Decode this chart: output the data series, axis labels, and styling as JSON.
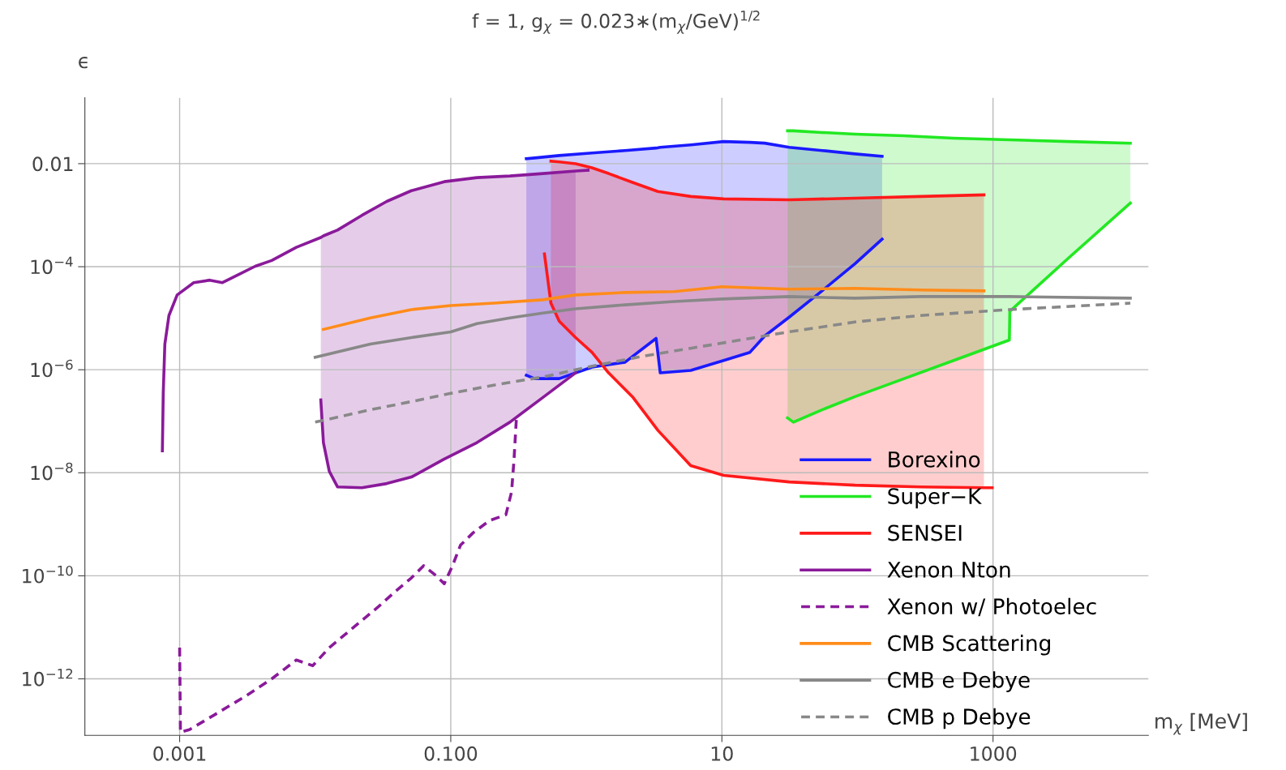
{
  "chart_data": {
    "type": "line",
    "title": "f = 1, g$_{χ}$ = 0.023∗(m$_{χ}$/GeV)$^{1/2}$",
    "xlabel": "m$_{χ}$ [MeV]",
    "ylabel": "ϵ",
    "log": "xy",
    "grid": true,
    "legend": "bottom right",
    "xlim": [
      0.0002,
      14000
    ],
    "ylim": [
      8e-14,
      0.19
    ],
    "xticks": [
      0.001,
      {
        "value": 0.1,
        "label": "0.100"
      },
      10,
      1000
    ],
    "yticks": [
      {
        "value": 1e-12,
        "label": "10$^{−12}$"
      },
      {
        "value": 1e-10,
        "label": "10$^{−10}$"
      },
      {
        "value": 1e-08,
        "label": "10$^{−8}$"
      },
      {
        "value": 1e-06,
        "label": "10$^{−6}$"
      },
      {
        "value": 0.0001,
        "label": "10$^{−4}$"
      },
      0.01
    ],
    "series": [
      {
        "name": "Borexino",
        "color": "#1a1aff",
        "line_style": "solid",
        "x": [
          0.361,
          0.415,
          0.631,
          1.1,
          1.93,
          3.27,
          3.51,
          5.89,
          10.3,
          16.1,
          20.7,
          31.4,
          54.8,
          95.9,
          152
        ],
        "values": [
          0.0125,
          0.0129,
          0.0144,
          0.0161,
          0.018,
          0.0201,
          0.0208,
          0.0232,
          0.0269,
          0.0259,
          0.025,
          0.0208,
          0.018,
          0.0155,
          0.0139
        ],
        "upper": [
          0.0125,
          0.0129,
          0.0144,
          0.0161,
          0.018,
          0.0201,
          0.0208,
          0.0232,
          0.0269,
          0.0259,
          0.025,
          0.0208,
          0.018,
          0.0155,
          0.0139
        ],
        "lower": [
          7.8e-07,
          6.73e-07,
          6.73e-07,
          1.12e-06,
          1.4e-06,
          4.06e-06,
          8.7e-07,
          9.7e-07,
          1.51e-06,
          2.18e-06,
          4.53e-06,
          1.05e-05,
          3.4e-05,
          0.000114,
          0.000343
        ]
      },
      {
        "color": "#1a1aff",
        "line_style": "solid",
        "x": [
          0.361,
          0.415,
          0.631,
          1.1,
          1.93,
          3.27,
          3.51,
          5.89,
          10.3,
          16.1,
          20.7,
          31.4,
          54.8,
          95.9,
          152
        ],
        "values": [
          7.8e-07,
          6.73e-07,
          6.73e-07,
          1.12e-06,
          1.4e-06,
          4.06e-06,
          8.7e-07,
          9.7e-07,
          1.51e-06,
          2.18e-06,
          4.53e-06,
          1.05e-05,
          3.4e-05,
          0.000114,
          0.000343
        ]
      },
      {
        "name": "Super−K",
        "color": "#22e822",
        "line_style": "solid",
        "x": [
          30.5,
          33.7,
          54.8,
          95.9,
          221,
          512,
          1320,
          1330,
          3610,
          10300
        ],
        "values": [
          0.0434,
          0.0434,
          0.0403,
          0.0374,
          0.0348,
          0.0312,
          0.029,
          0.029,
          0.0269,
          0.025
        ],
        "upper": [
          0.0434,
          0.0434,
          0.0403,
          0.0374,
          0.0348,
          0.0312,
          0.029,
          0.029,
          0.0269,
          0.025
        ],
        "lower": [
          1.16e-07,
          9.6e-08,
          1.67e-07,
          3e-07,
          6.73e-07,
          1.51e-06,
          3.77e-06,
          1.36e-05,
          0.000148,
          0.00172
        ]
      },
      {
        "color": "#22e822",
        "line_style": "solid",
        "x": [
          30.5,
          33.7,
          54.8,
          95.9,
          221,
          512,
          1320,
          1330,
          3610,
          10300
        ],
        "values": [
          1.16e-07,
          9.6e-08,
          1.67e-07,
          3e-07,
          6.73e-07,
          1.51e-06,
          3.77e-06,
          1.36e-05,
          0.000148,
          0.00172
        ]
      },
      {
        "name": "SENSEI",
        "color": "#ff1a1a",
        "line_style": "solid",
        "x": [
          0.548,
          0.631,
          0.834,
          1.1,
          1.46,
          2.21,
          3.37,
          5.89,
          10.3,
          31.4,
          95.9,
          293,
          857
        ],
        "values": [
          0.0112,
          0.0108,
          0.01,
          0.00832,
          0.00644,
          0.0043,
          0.00288,
          0.00231,
          0.00207,
          0.00199,
          0.00214,
          0.00231,
          0.00248
        ],
        "upper": [
          0.0112,
          0.0108,
          0.01,
          0.00832,
          0.00644,
          0.0043,
          0.00288,
          0.00231,
          0.00207,
          0.00199,
          0.00214,
          0.00231,
          0.00248
        ],
        "lower": [
          1.96e-05,
          8.77e-06,
          4.21e-06,
          2.18e-06,
          8.7e-07,
          2.9e-07,
          6.68e-08,
          1.38e-08,
          8.89e-09,
          6.63e-09,
          5.73e-09,
          5.32e-09,
          5.13e-09
        ]
      },
      {
        "color": "#ff1a1a",
        "line_style": "solid",
        "x": [
          0.491,
          0.548,
          0.631,
          0.834,
          1.1,
          1.46,
          2.21,
          3.37,
          5.89,
          10.3,
          31.4,
          95.9,
          293,
          857,
          986
        ],
        "values": [
          0.000177,
          1.96e-05,
          8.77e-06,
          4.21e-06,
          2.18e-06,
          8.7e-07,
          2.9e-07,
          6.68e-08,
          1.38e-08,
          8.89e-09,
          6.63e-09,
          5.73e-09,
          5.32e-09,
          5.13e-09,
          5.13e-09
        ]
      },
      {
        "name": "Xenon Nton",
        "color": "#8a1a9a",
        "line_style": "solid",
        "x": [
          0.000746,
          0.000757,
          0.000778,
          0.000834,
          0.000959,
          0.00127,
          0.00167,
          0.00207,
          0.00273,
          0.00361,
          0.00478,
          0.00726,
          0.011,
          0.0115,
          0.0127,
          0.0146,
          0.0221,
          0.0337,
          0.0512,
          0.0895,
          0.156,
          0.273,
          0.478,
          0.834,
          1.03
        ],
        "values": [
          2.67e-08,
          3.48e-07,
          3.14e-06,
          1.13e-05,
          2.83e-05,
          4.91e-05,
          5.48e-05,
          4.91e-05,
          7.08e-05,
          0.000102,
          0.000132,
          0.000238,
          0.000369,
          0.000397,
          0.000443,
          0.000513,
          0.000993,
          0.00185,
          0.00299,
          0.00447,
          0.00536,
          0.00577,
          0.00644,
          0.00719,
          0.00746
        ]
      },
      {
        "color": "#8a1a9a",
        "line_style": "solid",
        "x": [
          0.011,
          0.0115,
          0.0127,
          0.0146,
          0.0221,
          0.0337,
          0.0512,
          0.0895,
          0.156,
          0.273,
          0.478,
          0.834
        ],
        "values": [
          2.59e-07,
          3.85e-08,
          1.07e-08,
          5.32e-09,
          5.13e-09,
          6.17e-09,
          8.26e-09,
          1.85e-08,
          3.85e-08,
          9.6e-08,
          2.9e-07,
          8.7e-07
        ],
        "upper": [
          0.000369,
          0.000397,
          0.000443,
          0.000513,
          0.000993,
          0.00185,
          0.00299,
          0.00447,
          0.00536,
          0.00577,
          0.00644,
          0.00719
        ],
        "lower": [
          2.59e-07,
          3.85e-08,
          1.07e-08,
          5.32e-09,
          5.13e-09,
          6.17e-09,
          8.26e-09,
          1.85e-08,
          3.85e-08,
          9.6e-08,
          2.9e-07,
          8.7e-07
        ]
      },
      {
        "name": "Xenon w/ Photoelec",
        "color": "#8a1a9a",
        "line_style": "dashed",
        "x": [
          0.001,
          0.001014,
          0.00118,
          0.0018,
          0.00314,
          0.00478,
          0.00726,
          0.00959,
          0.0127,
          0.0193,
          0.0293,
          0.0387,
          0.0512,
          0.0631,
          0.0778,
          0.0895,
          0.103,
          0.118,
          0.146,
          0.193,
          0.255,
          0.281,
          0.293,
          0.305
        ],
        "values": [
          4.03e-12,
          9.2e-14,
          1.03e-13,
          1.99e-13,
          4.8e-13,
          1e-12,
          2.32e-12,
          1.8e-12,
          4.03e-12,
          1.01e-11,
          2.52e-11,
          4.88e-11,
          9.1e-11,
          1.57e-10,
          1.01e-10,
          7.03e-11,
          1.57e-10,
          3.94e-10,
          6.83e-10,
          1.18e-09,
          1.53e-09,
          4.28e-09,
          1.85e-08,
          1.16e-07
        ]
      },
      {
        "name": "CMB Scattering",
        "color": "#ff8c1a",
        "line_style": "solid",
        "x": [
          0.0115,
          0.0255,
          0.0512,
          0.1,
          0.207,
          0.478,
          0.834,
          1.93,
          4.45,
          10,
          31.4,
          95.9,
          293,
          857
        ],
        "values": [
          6.07e-06,
          1.01e-05,
          1.47e-05,
          1.76e-05,
          1.96e-05,
          2.28e-05,
          2.83e-05,
          3.16e-05,
          3.28e-05,
          4.08e-05,
          3.66e-05,
          3.8e-05,
          3.53e-05,
          3.4e-05
        ]
      },
      {
        "name": "CMB e Debye",
        "color": "#888888",
        "line_style": "solid",
        "x": [
          0.01,
          0.0255,
          0.0512,
          0.1,
          0.156,
          0.273,
          0.478,
          0.834,
          1.93,
          4.45,
          10,
          31.4,
          95.9,
          293,
          1320,
          10300
        ],
        "values": [
          1.75e-06,
          3.14e-06,
          4.21e-06,
          5.44e-06,
          7.85e-06,
          1.01e-05,
          1.26e-05,
          1.52e-05,
          1.82e-05,
          2.11e-05,
          2.36e-05,
          2.63e-05,
          2.45e-05,
          2.63e-05,
          2.63e-05,
          2.45e-05
        ]
      },
      {
        "name": "CMB p Debye",
        "color": "#888888",
        "line_style": "dashed",
        "x": [
          0.01,
          0.0255,
          0.0512,
          0.1,
          0.207,
          0.478,
          1.1,
          2.55,
          5.89,
          13.6,
          31.4,
          95.9,
          293,
          1320,
          10300
        ],
        "values": [
          9.6e-08,
          1.67e-07,
          2.41e-07,
          3.48e-07,
          5.02e-07,
          7.24e-07,
          1.17e-06,
          1.81e-06,
          2.61e-06,
          3.77e-06,
          5.44e-06,
          8.46e-06,
          1.13e-05,
          1.47e-05,
          1.96e-05
        ]
      }
    ]
  }
}
